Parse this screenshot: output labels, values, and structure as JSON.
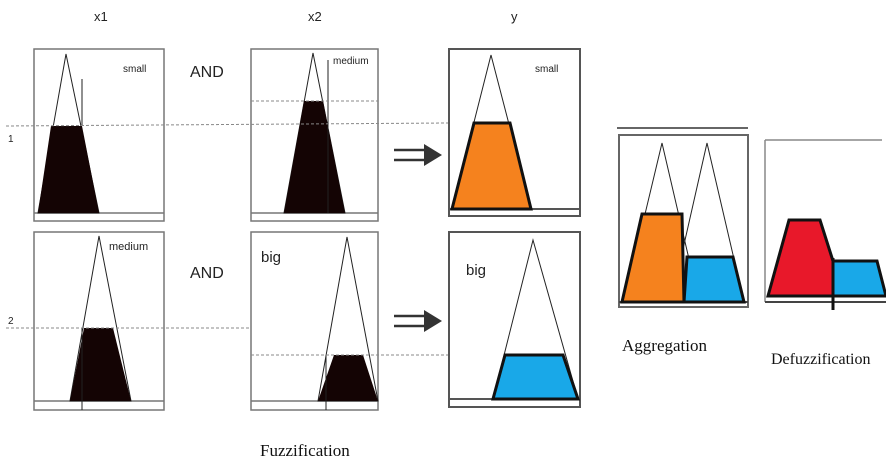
{
  "columns": {
    "x1": "x1",
    "x2": "x2",
    "y": "y"
  },
  "rows": {
    "r1": "1",
    "r2": "2"
  },
  "operators": {
    "r1": "AND",
    "r2": "AND"
  },
  "membership": {
    "x1_r1": "small",
    "x2_r1": "medium",
    "y_r1": "small",
    "x1_r2": "medium",
    "x2_r2": "big",
    "y_r2": "big"
  },
  "captions": {
    "fuzzification": "Fuzzification",
    "aggregation": "Aggregation",
    "defuzzification": "Defuzzification"
  },
  "colors": {
    "black_fill": "#140404",
    "orange": "#F5821E",
    "blue": "#19A8E8",
    "red": "#E8182A"
  }
}
